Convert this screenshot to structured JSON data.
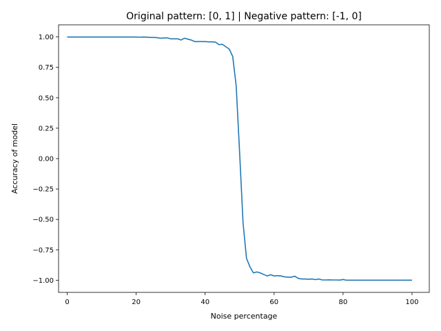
{
  "chart_data": {
    "type": "line",
    "title": "Original pattern: [0, 1] | Negative pattern: [-1, 0]",
    "xlabel": "Noise percentage",
    "ylabel": "Accuracy of model",
    "xlim": [
      -2.5,
      105
    ],
    "ylim": [
      -1.1,
      1.1
    ],
    "xticks": [
      0,
      20,
      40,
      60,
      80,
      100
    ],
    "yticks": [
      -1.0,
      -0.75,
      -0.5,
      -0.25,
      0.0,
      0.25,
      0.5,
      0.75,
      1.0
    ],
    "ytick_labels": [
      "−1.00",
      "−0.75",
      "−0.50",
      "−0.25",
      "0.00",
      "0.25",
      "0.50",
      "0.75",
      "1.00"
    ],
    "grid": false,
    "series": [
      {
        "color": "#1f77b4",
        "x": [
          0,
          5,
          10,
          15,
          20,
          21,
          22,
          23,
          24,
          25,
          26,
          27,
          28,
          29,
          30,
          31,
          32,
          33,
          34,
          35,
          36,
          37,
          38,
          39,
          40,
          41,
          42,
          43,
          44,
          45,
          46,
          47,
          48,
          49,
          50,
          51,
          52,
          53,
          54,
          55,
          56,
          57,
          58,
          59,
          60,
          61,
          62,
          63,
          64,
          65,
          66,
          67,
          68,
          69,
          70,
          71,
          72,
          73,
          74,
          75,
          76,
          77,
          78,
          79,
          80,
          81,
          85,
          90,
          95,
          100
        ],
        "y": [
          1.0,
          1.0,
          1.0,
          1.0,
          1.0,
          0.998,
          1.0,
          0.999,
          0.996,
          0.996,
          0.995,
          0.99,
          0.992,
          0.993,
          0.985,
          0.985,
          0.985,
          0.975,
          0.99,
          0.982,
          0.975,
          0.962,
          0.962,
          0.962,
          0.962,
          0.96,
          0.96,
          0.958,
          0.937,
          0.94,
          0.92,
          0.9,
          0.84,
          0.6,
          0.05,
          -0.53,
          -0.82,
          -0.89,
          -0.94,
          -0.932,
          -0.94,
          -0.953,
          -0.965,
          -0.955,
          -0.965,
          -0.962,
          -0.965,
          -0.972,
          -0.975,
          -0.975,
          -0.967,
          -0.985,
          -0.99,
          -0.99,
          -0.992,
          -0.99,
          -0.995,
          -0.99,
          -0.998,
          -0.998,
          -0.997,
          -0.998,
          -0.998,
          -0.999,
          -0.994,
          -1.0,
          -1.0,
          -1.0,
          -1.0,
          -1.0
        ]
      }
    ]
  }
}
